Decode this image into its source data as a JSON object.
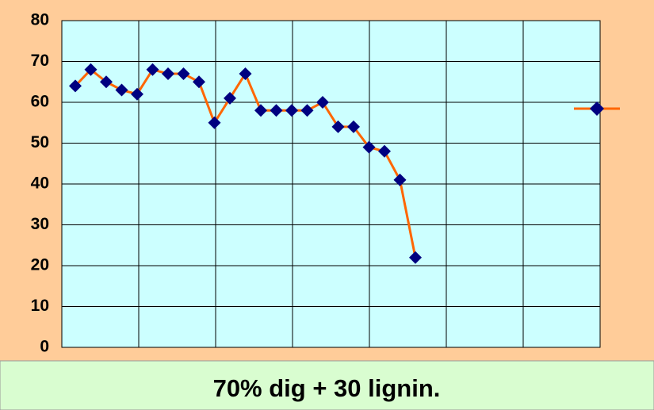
{
  "chart_data": {
    "type": "line",
    "caption": "70% dig + 30 lignin.",
    "series": [
      {
        "color": "#ff6600",
        "marker_color": "#000080",
        "values": [
          64,
          68,
          65,
          63,
          62,
          68,
          67,
          67,
          65,
          55,
          61,
          67,
          58,
          58,
          58,
          58,
          60,
          54,
          54,
          49,
          48,
          41,
          22
        ]
      }
    ],
    "ylim": [
      0,
      80
    ],
    "yticks": [
      0,
      10,
      20,
      30,
      40,
      50,
      60,
      70,
      80
    ],
    "grid": true,
    "legend": "right"
  }
}
